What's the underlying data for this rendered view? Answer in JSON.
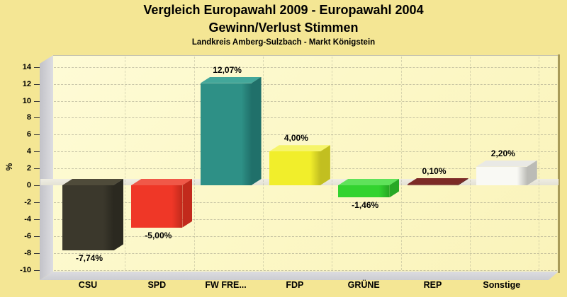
{
  "title": {
    "line1": "Vergleich Europawahl 2009 - Europawahl 2004",
    "line2": "Gewinn/Verlust Stimmen",
    "subtitle": "Landkreis Amberg-Sulzbach - Markt Königstein"
  },
  "chart_data": {
    "type": "bar",
    "style": "3d-block-bars",
    "title": "Vergleich Europawahl 2009 - Europawahl 2004 Gewinn/Verlust Stimmen",
    "subtitle": "Landkreis Amberg-Sulzbach - Markt Königstein",
    "categories": [
      "CSU",
      "SPD",
      "FW FRE...",
      "FDP",
      "GRÜNE",
      "REP",
      "Sonstige"
    ],
    "values": [
      -7.74,
      -5.0,
      12.07,
      4.0,
      -1.46,
      0.1,
      2.2
    ],
    "value_labels": [
      "-7,74%",
      "-5,00%",
      "12,07%",
      "4,00%",
      "-1,46%",
      "0,10%",
      "2,20%"
    ],
    "xlabel": "",
    "ylabel": "%",
    "ylim": [
      -10,
      15
    ],
    "yticks": [
      14,
      12,
      10,
      8,
      6,
      4,
      2,
      0,
      -2,
      -4,
      -6,
      -8,
      -10
    ],
    "grid": "dashed horizontal and vertical",
    "legend_position": "none",
    "bar_colors": [
      {
        "name": "CSU",
        "front": "#3b382c",
        "top": "#4f4b3a",
        "side": "#2b2920"
      },
      {
        "name": "SPD",
        "front": "#ef3727",
        "top": "#f05848",
        "side": "#c22a1c"
      },
      {
        "name": "FW FRE...",
        "front": "#2e9086",
        "top": "#43a79a",
        "side": "#20706a"
      },
      {
        "name": "FDP",
        "front": "#f1ee2b",
        "top": "#f6f46a",
        "side": "#c2bf20"
      },
      {
        "name": "GRÜNE",
        "front": "#33d32f",
        "top": "#5fe25a",
        "side": "#27a824"
      },
      {
        "name": "REP",
        "front": "#6e2420",
        "top": "#7c2b26",
        "side": "#581a16"
      },
      {
        "name": "Sonstige",
        "front": "#f9f9f4",
        "top": "#e9e9e5",
        "side": "#bbbbb6"
      }
    ],
    "background_outer": "#f4e694",
    "background_plot": "#fcf8c8",
    "wall_color": "#d0d0d6",
    "zero_plane_color": "#e9e7db"
  }
}
